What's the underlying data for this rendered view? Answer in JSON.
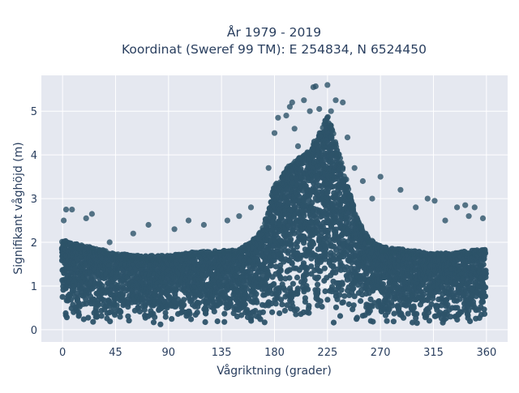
{
  "chart_data": {
    "type": "scatter",
    "title": "År 1979 - 2019",
    "subtitle": "Koordinat (Sweref 99 TM): E 254834, N 6524450",
    "xlabel": "Vågriktning (grader)",
    "ylabel": "Signifikant våghöjd (m)",
    "xlim": [
      -18,
      378
    ],
    "ylim": [
      -0.28,
      5.82
    ],
    "xticks": [
      0,
      45,
      90,
      135,
      180,
      225,
      270,
      315,
      360
    ],
    "yticks": [
      0,
      1,
      2,
      3,
      4,
      5
    ],
    "grid": true,
    "legend": "none",
    "marker_color": "#2d5369",
    "plot_bg": "#e5e8f0",
    "envelope": {
      "x": [
        0,
        15,
        30,
        45,
        60,
        75,
        90,
        105,
        120,
        135,
        150,
        160,
        170,
        175,
        180,
        190,
        200,
        210,
        220,
        225,
        230,
        240,
        250,
        255,
        260,
        270,
        285,
        300,
        315,
        330,
        345,
        360
      ],
      "y_max": [
        2.05,
        1.95,
        1.85,
        1.75,
        1.7,
        1.7,
        1.7,
        1.75,
        1.8,
        1.8,
        1.85,
        2.0,
        2.3,
        2.8,
        3.3,
        3.7,
        3.9,
        4.1,
        4.6,
        4.9,
        4.5,
        3.5,
        2.6,
        2.3,
        2.1,
        1.9,
        1.85,
        1.8,
        1.75,
        1.75,
        1.8,
        1.85
      ],
      "y_min": 0.1
    },
    "outliers": [
      {
        "x": 1,
        "y": 2.5
      },
      {
        "x": 3,
        "y": 2.75
      },
      {
        "x": 8,
        "y": 2.75
      },
      {
        "x": 20,
        "y": 2.55
      },
      {
        "x": 25,
        "y": 2.65
      },
      {
        "x": 40,
        "y": 2.0
      },
      {
        "x": 60,
        "y": 2.2
      },
      {
        "x": 73,
        "y": 2.4
      },
      {
        "x": 95,
        "y": 2.3
      },
      {
        "x": 107,
        "y": 2.5
      },
      {
        "x": 120,
        "y": 2.4
      },
      {
        "x": 140,
        "y": 2.5
      },
      {
        "x": 150,
        "y": 2.6
      },
      {
        "x": 160,
        "y": 2.8
      },
      {
        "x": 175,
        "y": 3.7
      },
      {
        "x": 180,
        "y": 4.5
      },
      {
        "x": 183,
        "y": 4.85
      },
      {
        "x": 190,
        "y": 4.9
      },
      {
        "x": 193,
        "y": 5.1
      },
      {
        "x": 195,
        "y": 5.2
      },
      {
        "x": 197,
        "y": 4.6
      },
      {
        "x": 200,
        "y": 4.2
      },
      {
        "x": 205,
        "y": 5.25
      },
      {
        "x": 210,
        "y": 5.0
      },
      {
        "x": 213,
        "y": 5.55
      },
      {
        "x": 215,
        "y": 5.57
      },
      {
        "x": 218,
        "y": 5.05
      },
      {
        "x": 225,
        "y": 5.6
      },
      {
        "x": 228,
        "y": 5.0
      },
      {
        "x": 232,
        "y": 5.25
      },
      {
        "x": 238,
        "y": 5.2
      },
      {
        "x": 242,
        "y": 4.4
      },
      {
        "x": 248,
        "y": 3.7
      },
      {
        "x": 255,
        "y": 3.4
      },
      {
        "x": 263,
        "y": 3.0
      },
      {
        "x": 270,
        "y": 3.5
      },
      {
        "x": 287,
        "y": 3.2
      },
      {
        "x": 300,
        "y": 2.8
      },
      {
        "x": 310,
        "y": 3.0
      },
      {
        "x": 316,
        "y": 2.95
      },
      {
        "x": 325,
        "y": 2.5
      },
      {
        "x": 335,
        "y": 2.8
      },
      {
        "x": 342,
        "y": 2.85
      },
      {
        "x": 345,
        "y": 2.6
      },
      {
        "x": 350,
        "y": 2.8
      },
      {
        "x": 357,
        "y": 2.55
      }
    ]
  }
}
